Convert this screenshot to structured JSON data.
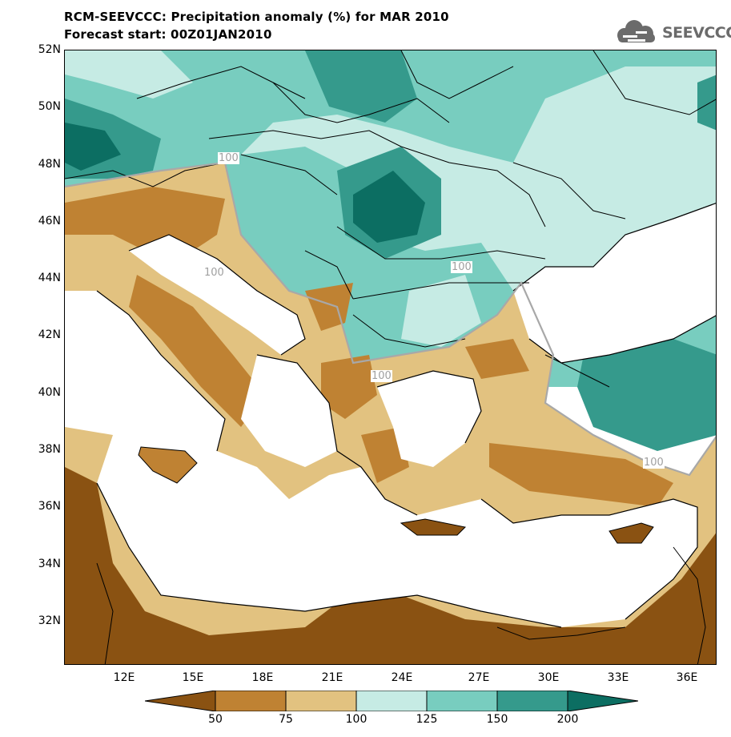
{
  "title": {
    "line1": "RCM-SEEVCCC: Precipitation anomaly (%) for MAR 2010",
    "line2": "Forecast start: 00Z01JAN2010"
  },
  "logo": {
    "text": "SEEVCCC",
    "icon": "cloud-logo-icon",
    "color": "#6b6b6b"
  },
  "axes": {
    "lat_labels": [
      "52N",
      "50N",
      "48N",
      "46N",
      "44N",
      "42N",
      "40N",
      "38N",
      "36N",
      "34N",
      "32N"
    ],
    "lon_labels": [
      "12E",
      "15E",
      "18E",
      "21E",
      "24E",
      "27E",
      "30E",
      "33E",
      "36E"
    ]
  },
  "contour_labels": [
    "100",
    "100",
    "100",
    "100",
    "100"
  ],
  "colorbar": {
    "labels": [
      "50",
      "75",
      "100",
      "125",
      "150",
      "200"
    ],
    "colors": [
      "#8a5212",
      "#bf8233",
      "#e2c280",
      "#c6ebe4",
      "#78cdbf",
      "#359a8c",
      "#0c6e62"
    ]
  },
  "colors": {
    "sea": "#ffffff",
    "border": "#000000",
    "contour_100": "#a8a8a8"
  }
}
